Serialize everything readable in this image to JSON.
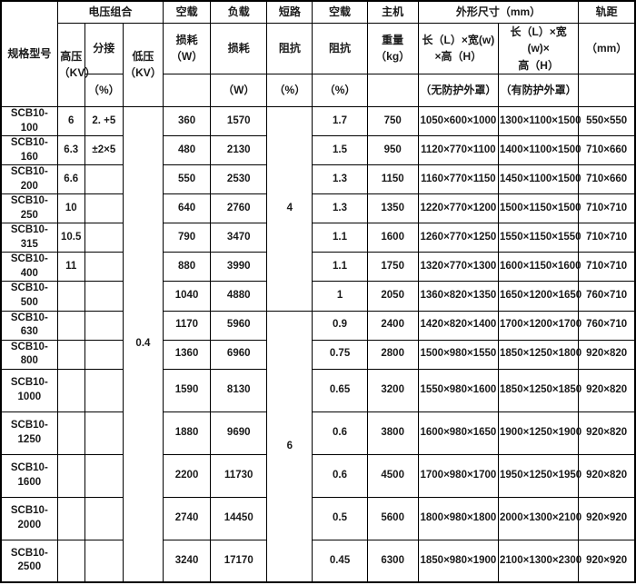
{
  "table": {
    "header": {
      "model": "规格型号",
      "voltage_group": "电压组合",
      "hv": "高压",
      "hv_unit": "（KV）",
      "tap": "分接",
      "tap_unit": "（%）",
      "lv": "低压",
      "lv_unit": "（KV）",
      "noload": "空载",
      "noload_loss_l1": "损耗",
      "noload_loss_l2": "（W）",
      "load": "负载",
      "load_loss": "损耗",
      "load_loss_unit": "（W）",
      "short_circuit": "短路",
      "short_imp": "阻抗",
      "short_imp_unit": "（%）",
      "noload2": "空载",
      "noload_imp": "阻抗",
      "noload_imp_unit": "（%）",
      "host": "主机",
      "weight_l1": "重量",
      "weight_l2": "（kg）",
      "dims": "外形尺寸（mm）",
      "dim_open_l1": "长（L）×宽(w)",
      "dim_open_l2": "×高（H）",
      "dim_open_note": "（无防护外罩）",
      "dim_enc_l1": "长（L）×宽(w)×",
      "dim_enc_l2": "高（H）",
      "dim_enc_note": "（有防护外罩）",
      "gauge": "轨距",
      "gauge_unit": "（mm）"
    },
    "lv_value": "0.4",
    "impedance_groups": [
      {
        "value": "4",
        "span": 7
      },
      {
        "value": "6",
        "span": 7
      }
    ],
    "rows": [
      {
        "model": "SCB10-100",
        "hv": "6",
        "tap": "2. +5",
        "noload_loss": "360",
        "load_loss": "1570",
        "noload_current": "1.7",
        "weight": "750",
        "dim_open": "1050×600×1000",
        "dim_enc": "1300×1100×1500",
        "gauge": "550×550"
      },
      {
        "model": "SCB10-160",
        "hv": "6.3",
        "tap": "±2×5",
        "noload_loss": "480",
        "load_loss": "2130",
        "noload_current": "1.5",
        "weight": "950",
        "dim_open": "1120×770×1100",
        "dim_enc": "1400×1100×1500",
        "gauge": "710×660"
      },
      {
        "model": "SCB10-200",
        "hv": "6.6",
        "tap": "",
        "noload_loss": "550",
        "load_loss": "2530",
        "noload_current": "1.3",
        "weight": "1150",
        "dim_open": "1160×770×1150",
        "dim_enc": "1450×1100×1500",
        "gauge": "710×660"
      },
      {
        "model": "SCB10-250",
        "hv": "10",
        "tap": "",
        "noload_loss": "640",
        "load_loss": "2760",
        "noload_current": "1.3",
        "weight": "1350",
        "dim_open": "1220×770×1200",
        "dim_enc": "1500×1150×1500",
        "gauge": "710×710"
      },
      {
        "model": "SCB10-315",
        "hv": "10.5",
        "tap": "",
        "noload_loss": "790",
        "load_loss": "3470",
        "noload_current": "1.1",
        "weight": "1600",
        "dim_open": "1260×770×1250",
        "dim_enc": "1550×1150×1550",
        "gauge": "710×710"
      },
      {
        "model": "SCB10-400",
        "hv": "11",
        "tap": "",
        "noload_loss": "880",
        "load_loss": "3990",
        "noload_current": "1.1",
        "weight": "1750",
        "dim_open": "1320×770×1300",
        "dim_enc": "1600×1150×1600",
        "gauge": "710×710"
      },
      {
        "model": "SCB10-500",
        "hv": "",
        "tap": "",
        "noload_loss": "1040",
        "load_loss": "4880",
        "noload_current": "1",
        "weight": "2050",
        "dim_open": "1360×820×1350",
        "dim_enc": "1650×1200×1650",
        "gauge": "760×710"
      },
      {
        "model": "SCB10-630",
        "hv": "",
        "tap": "",
        "noload_loss": "1170",
        "load_loss": "5960",
        "noload_current": "0.9",
        "weight": "2400",
        "dim_open": "1420×820×1400",
        "dim_enc": "1700×1200×1700",
        "gauge": "760×710"
      },
      {
        "model": "SCB10-800",
        "hv": "",
        "tap": "",
        "noload_loss": "1360",
        "load_loss": "6960",
        "noload_current": "0.75",
        "weight": "2800",
        "dim_open": "1500×980×1550",
        "dim_enc": "1850×1250×1800",
        "gauge": "920×820"
      },
      {
        "model": "SCB10-1000",
        "hv": "",
        "tap": "",
        "noload_loss": "1590",
        "load_loss": "8130",
        "noload_current": "0.65",
        "weight": "3200",
        "dim_open": "1550×980×1600",
        "dim_enc": "1850×1250×1850",
        "gauge": "920×820"
      },
      {
        "model": "SCB10-1250",
        "hv": "",
        "tap": "",
        "noload_loss": "1880",
        "load_loss": "9690",
        "noload_current": "0.6",
        "weight": "3800",
        "dim_open": "1600×980×1650",
        "dim_enc": "1900×1250×1900",
        "gauge": "920×820"
      },
      {
        "model": "SCB10-1600",
        "hv": "",
        "tap": "",
        "noload_loss": "2200",
        "load_loss": "11730",
        "noload_current": "0.6",
        "weight": "4500",
        "dim_open": "1700×980×1700",
        "dim_enc": "1950×1250×1950",
        "gauge": "920×820"
      },
      {
        "model": "SCB10-2000",
        "hv": "",
        "tap": "",
        "noload_loss": "2740",
        "load_loss": "14450",
        "noload_current": "0.5",
        "weight": "5600",
        "dim_open": "1800×980×1800",
        "dim_enc": "2000×1300×2100",
        "gauge": "920×920"
      },
      {
        "model": "SCB10-2500",
        "hv": "",
        "tap": "",
        "noload_loss": "3240",
        "load_loss": "17170",
        "noload_current": "0.45",
        "weight": "6300",
        "dim_open": "1850×980×1900",
        "dim_enc": "2100×1300×2300",
        "gauge": "920×920"
      }
    ],
    "colors": {
      "border": "#000000",
      "text": "#1a1a1a",
      "background": "#ffffff"
    }
  }
}
